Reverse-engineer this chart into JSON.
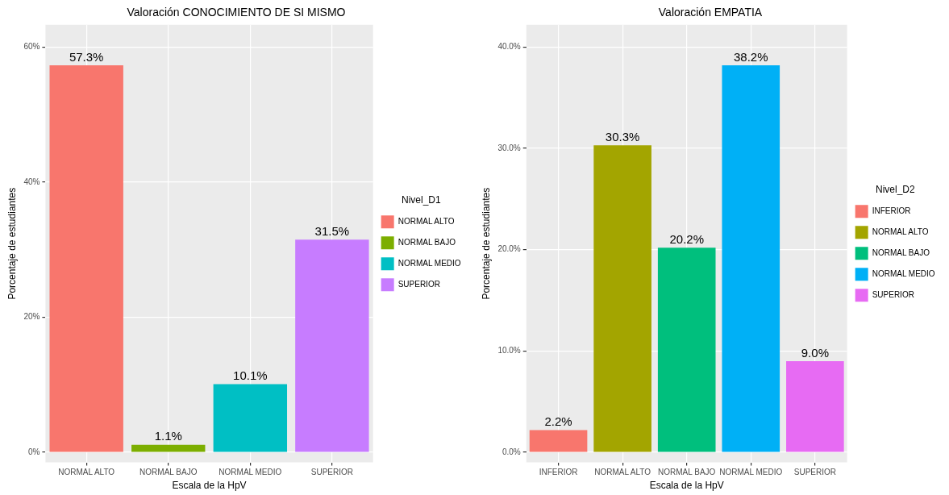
{
  "chart_data": [
    {
      "type": "bar",
      "title": "Valoración CONOCIMIENTO DE SI MISMO",
      "xlabel": "Escala de la HpV",
      "ylabel": "Porcentaje de estudiantes",
      "legend_title": "Nivel_D1",
      "categories": [
        "NORMAL ALTO",
        "NORMAL BAJO",
        "NORMAL MEDIO",
        "SUPERIOR"
      ],
      "series": [
        {
          "name": "NORMAL ALTO",
          "color": "#f8766d",
          "values": [
            57.3,
            null,
            null,
            null
          ],
          "value_labels": [
            "57.3%",
            null,
            null,
            null
          ]
        },
        {
          "name": "NORMAL BAJO",
          "color": "#7cae00",
          "values": [
            null,
            1.1,
            null,
            null
          ],
          "value_labels": [
            null,
            "1.1%",
            null,
            null
          ]
        },
        {
          "name": "NORMAL MEDIO",
          "color": "#00bfc4",
          "values": [
            null,
            null,
            10.1,
            null
          ],
          "value_labels": [
            null,
            null,
            "10.1%",
            null
          ]
        },
        {
          "name": "SUPERIOR",
          "color": "#c77cff",
          "values": [
            null,
            null,
            null,
            31.5
          ],
          "value_labels": [
            null,
            null,
            null,
            "31.5%"
          ]
        }
      ],
      "ylim": [
        -1.5,
        63.3
      ],
      "yticks": [
        {
          "value": 0,
          "label": "0%"
        },
        {
          "value": 20,
          "label": "20%"
        },
        {
          "value": 40,
          "label": "40%"
        },
        {
          "value": 60,
          "label": "60%"
        }
      ],
      "grid": true,
      "legend": "right"
    },
    {
      "type": "bar",
      "title": "Valoración EMPATIA",
      "xlabel": "Escala de la HpV",
      "ylabel": "Porcentaje de estudiantes",
      "legend_title": "Nivel_D2",
      "categories": [
        "INFERIOR",
        "NORMAL ALTO",
        "NORMAL BAJO",
        "NORMAL MEDIO",
        "SUPERIOR"
      ],
      "series": [
        {
          "name": "INFERIOR",
          "color": "#f8766d",
          "values": [
            2.2,
            null,
            null,
            null,
            null
          ],
          "value_labels": [
            "2.2%",
            null,
            null,
            null,
            null
          ]
        },
        {
          "name": "NORMAL ALTO",
          "color": "#a3a500",
          "values": [
            null,
            30.3,
            null,
            null,
            null
          ],
          "value_labels": [
            null,
            "30.3%",
            null,
            null,
            null
          ]
        },
        {
          "name": "NORMAL BAJO",
          "color": "#00bf7d",
          "values": [
            null,
            null,
            20.2,
            null,
            null
          ],
          "value_labels": [
            null,
            null,
            "20.2%",
            null,
            null
          ]
        },
        {
          "name": "NORMAL MEDIO",
          "color": "#00b0f6",
          "values": [
            null,
            null,
            null,
            38.2,
            null
          ],
          "value_labels": [
            null,
            null,
            null,
            "38.2%",
            null
          ]
        },
        {
          "name": "SUPERIOR",
          "color": "#e76bf3",
          "values": [
            null,
            null,
            null,
            null,
            9.0
          ],
          "value_labels": [
            null,
            null,
            null,
            null,
            "9.0%"
          ]
        }
      ],
      "ylim": [
        -1.0,
        42.2
      ],
      "yticks": [
        {
          "value": 0,
          "label": "0.0%"
        },
        {
          "value": 10,
          "label": "10.0%"
        },
        {
          "value": 20,
          "label": "20.0%"
        },
        {
          "value": 30,
          "label": "30.0%"
        },
        {
          "value": 40,
          "label": "40.0%"
        }
      ],
      "grid": true,
      "legend": "right"
    }
  ]
}
